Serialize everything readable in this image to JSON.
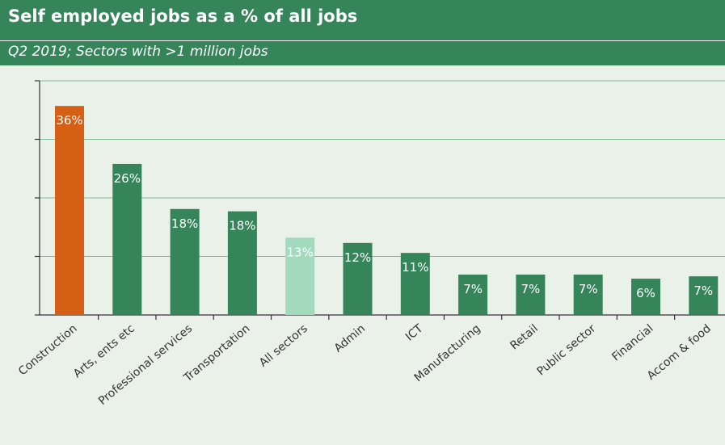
{
  "title": "Self employed jobs as a % of all jobs",
  "subtitle": "Q2 2019; Sectors with >1 million jobs",
  "colors": {
    "header_bg": "#35845a",
    "bar_default": "#35845a",
    "bar_construction": "#d45f15",
    "bar_all_sectors": "#a3d9bd",
    "background": "#eaf1e8"
  },
  "chart_data": {
    "type": "bar",
    "title": "Self employed jobs as a % of all jobs",
    "subtitle": "Q2 2019; Sectors with >1 million jobs",
    "categories": [
      "Construction",
      "Arts, ents etc",
      "Professional services",
      "Transportation",
      "All sectors",
      "Admin",
      "ICT",
      "Manufacturing",
      "Retail",
      "Public sector",
      "Financial",
      "Accom & food"
    ],
    "values": [
      36,
      26,
      18,
      18,
      13,
      12,
      11,
      7,
      7,
      7,
      6,
      7
    ],
    "data_labels": [
      "36%",
      "26%",
      "18%",
      "18%",
      "13%",
      "12%",
      "11%",
      "7%",
      "7%",
      "7%",
      "6%",
      "7%"
    ],
    "bar_heights_pct": [
      35.7,
      25.8,
      18.1,
      17.7,
      13.2,
      12.3,
      10.6,
      6.9,
      6.9,
      6.9,
      6.2,
      6.6
    ],
    "highlight": {
      "Construction": "#d45f15",
      "All sectors": "#a3d9bd"
    },
    "ylim": [
      0,
      40
    ],
    "yticks": [
      0,
      10,
      20,
      30,
      40
    ],
    "ytick_labels_shown": false,
    "xlabel": "",
    "ylabel": "",
    "grid": true
  }
}
